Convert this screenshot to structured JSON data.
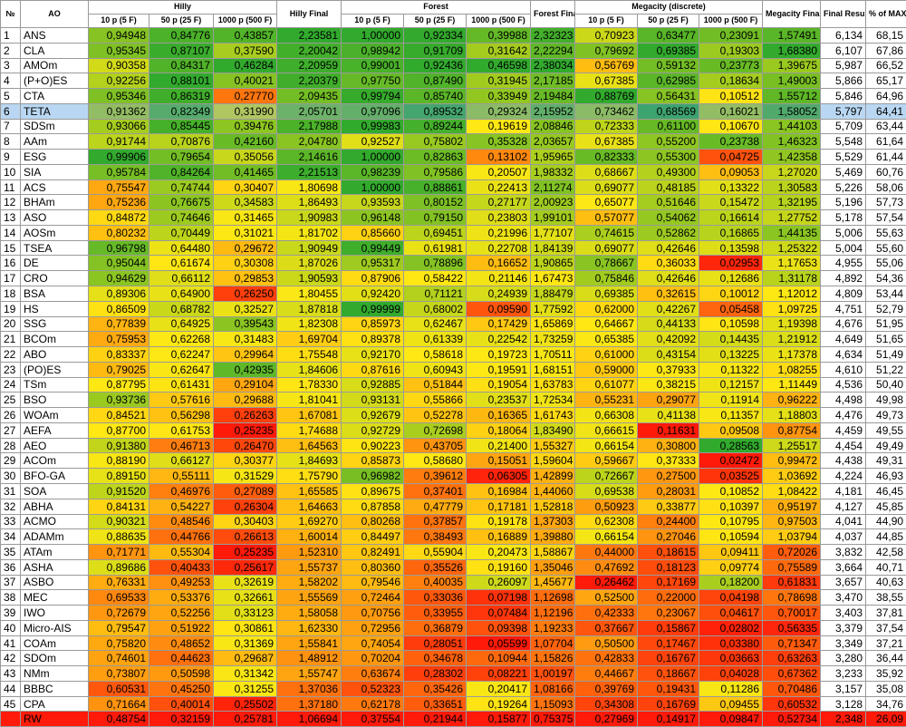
{
  "table": {
    "header": {
      "top": [
        "№",
        "AO",
        "Hilly",
        "Hilly Final",
        "Forest",
        "Forest Final",
        "Megacity (discrete)",
        "Megacity Final",
        "Final Result",
        "% of MAX"
      ],
      "sub": [
        "10 p (5 F)",
        "50 p (25 F)",
        "1000 p (500 F)",
        "10 p (5 F)",
        "50 p (25 F)",
        "1000 p (500 F)",
        "10 p (5 F)",
        "50 p (25 F)",
        "1000 p (500 F)"
      ]
    },
    "rows": [
      [
        1,
        "ANS",
        "0,94948",
        "0,84776",
        "0,43857",
        "2,23581",
        "1,00000",
        "0,92334",
        "0,39988",
        "2,32323",
        "0,70923",
        "0,63477",
        "0,23091",
        "1,57491",
        "6,134",
        "68,15"
      ],
      [
        2,
        "CLA",
        "0,95345",
        "0,87107",
        "0,37590",
        "2,20042",
        "0,98942",
        "0,91709",
        "0,31642",
        "2,22294",
        "0,79692",
        "0,69385",
        "0,19303",
        "1,68380",
        "6,107",
        "67,86"
      ],
      [
        3,
        "AMOm",
        "0,90358",
        "0,84317",
        "0,46284",
        "2,20959",
        "0,99001",
        "0,92436",
        "0,46598",
        "2,38034",
        "0,56769",
        "0,59132",
        "0,23773",
        "1,39675",
        "5,987",
        "66,52"
      ],
      [
        4,
        "(P+O)ES",
        "0,92256",
        "0,88101",
        "0,40021",
        "2,20379",
        "0,97750",
        "0,87490",
        "0,31945",
        "2,17185",
        "0,67385",
        "0,62985",
        "0,18634",
        "1,49003",
        "5,866",
        "65,17"
      ],
      [
        5,
        "CTA",
        "0,95346",
        "0,86319",
        "0,27770",
        "2,09435",
        "0,99794",
        "0,85740",
        "0,33949",
        "2,19484",
        "0,88769",
        "0,56431",
        "0,10512",
        "1,55712",
        "5,846",
        "64,96"
      ],
      [
        6,
        "TETA",
        "0,91362",
        "0,82349",
        "0,31990",
        "2,05701",
        "0,97096",
        "0,89532",
        "0,29324",
        "2,15952",
        "0,73462",
        "0,68569",
        "0,16021",
        "1,58052",
        "5,797",
        "64,41"
      ],
      [
        7,
        "SDSm",
        "0,93066",
        "0,85445",
        "0,39476",
        "2,17988",
        "0,99983",
        "0,89244",
        "0,19619",
        "2,08846",
        "0,72333",
        "0,61100",
        "0,10670",
        "1,44103",
        "5,709",
        "63,44"
      ],
      [
        8,
        "AAm",
        "0,91744",
        "0,70876",
        "0,42160",
        "2,04780",
        "0,92527",
        "0,75802",
        "0,35328",
        "2,03657",
        "0,67385",
        "0,55200",
        "0,23738",
        "1,46323",
        "5,548",
        "61,64"
      ],
      [
        9,
        "ESG",
        "0,99906",
        "0,79654",
        "0,35056",
        "2,14616",
        "1,00000",
        "0,82863",
        "0,13102",
        "1,95965",
        "0,82333",
        "0,55300",
        "0,04725",
        "1,42358",
        "5,529",
        "61,44"
      ],
      [
        10,
        "SIA",
        "0,95784",
        "0,84264",
        "0,41465",
        "2,21513",
        "0,98239",
        "0,79586",
        "0,20507",
        "1,98332",
        "0,68667",
        "0,49300",
        "0,09053",
        "1,27020",
        "5,469",
        "60,76"
      ],
      [
        11,
        "ACS",
        "0,75547",
        "0,74744",
        "0,30407",
        "1,80698",
        "1,00000",
        "0,88861",
        "0,22413",
        "2,11274",
        "0,69077",
        "0,48185",
        "0,13322",
        "1,30583",
        "5,226",
        "58,06"
      ],
      [
        12,
        "BHAm",
        "0,75236",
        "0,76675",
        "0,34583",
        "1,86493",
        "0,93593",
        "0,80152",
        "0,27177",
        "2,00923",
        "0,65077",
        "0,51646",
        "0,15472",
        "1,32195",
        "5,196",
        "57,73"
      ],
      [
        13,
        "ASO",
        "0,84872",
        "0,74646",
        "0,31465",
        "1,90983",
        "0,96148",
        "0,79150",
        "0,23803",
        "1,99101",
        "0,57077",
        "0,54062",
        "0,16614",
        "1,27752",
        "5,178",
        "57,54"
      ],
      [
        14,
        "AOSm",
        "0,80232",
        "0,70449",
        "0,31021",
        "1,81702",
        "0,85660",
        "0,69451",
        "0,21996",
        "1,77107",
        "0,74615",
        "0,52862",
        "0,16865",
        "1,44135",
        "5,006",
        "55,63"
      ],
      [
        15,
        "TSEA",
        "0,96798",
        "0,64480",
        "0,29672",
        "1,90949",
        "0,99449",
        "0,61981",
        "0,22708",
        "1,84139",
        "0,69077",
        "0,42646",
        "0,13598",
        "1,25322",
        "5,004",
        "55,60"
      ],
      [
        16,
        "DE",
        "0,95044",
        "0,61674",
        "0,30308",
        "1,87026",
        "0,95317",
        "0,78896",
        "0,16652",
        "1,90865",
        "0,78667",
        "0,36033",
        "0,02953",
        "1,17653",
        "4,955",
        "55,06"
      ],
      [
        17,
        "CRO",
        "0,94629",
        "0,66112",
        "0,29853",
        "1,90593",
        "0,87906",
        "0,58422",
        "0,21146",
        "1,67473",
        "0,75846",
        "0,42646",
        "0,12686",
        "1,31178",
        "4,892",
        "54,36"
      ],
      [
        18,
        "BSA",
        "0,89306",
        "0,64900",
        "0,26250",
        "1,80455",
        "0,92420",
        "0,71121",
        "0,24939",
        "1,88479",
        "0,69385",
        "0,32615",
        "0,10012",
        "1,12012",
        "4,809",
        "53,44"
      ],
      [
        19,
        "HS",
        "0,86509",
        "0,68782",
        "0,32527",
        "1,87818",
        "0,99999",
        "0,68002",
        "0,09590",
        "1,77592",
        "0,62000",
        "0,42267",
        "0,05458",
        "1,09725",
        "4,751",
        "52,79"
      ],
      [
        20,
        "SSG",
        "0,77839",
        "0,64925",
        "0,39543",
        "1,82308",
        "0,85973",
        "0,62467",
        "0,17429",
        "1,65869",
        "0,64667",
        "0,44133",
        "0,10598",
        "1,19398",
        "4,676",
        "51,95"
      ],
      [
        21,
        "BCOm",
        "0,75953",
        "0,62268",
        "0,31483",
        "1,69704",
        "0,89378",
        "0,61339",
        "0,22542",
        "1,73259",
        "0,65385",
        "0,42092",
        "0,14435",
        "1,21912",
        "4,649",
        "51,65"
      ],
      [
        22,
        "ABO",
        "0,83337",
        "0,62247",
        "0,29964",
        "1,75548",
        "0,92170",
        "0,58618",
        "0,19723",
        "1,70511",
        "0,61000",
        "0,43154",
        "0,13225",
        "1,17378",
        "4,634",
        "51,49"
      ],
      [
        23,
        "(PO)ES",
        "0,79025",
        "0,62647",
        "0,42935",
        "1,84606",
        "0,87616",
        "0,60943",
        "0,19591",
        "1,68151",
        "0,59000",
        "0,37933",
        "0,11322",
        "1,08255",
        "4,610",
        "51,22"
      ],
      [
        24,
        "TSm",
        "0,87795",
        "0,61431",
        "0,29104",
        "1,78330",
        "0,92885",
        "0,51844",
        "0,19054",
        "1,63783",
        "0,61077",
        "0,38215",
        "0,12157",
        "1,11449",
        "4,536",
        "50,40"
      ],
      [
        25,
        "BSO",
        "0,93736",
        "0,57616",
        "0,29688",
        "1,81041",
        "0,93131",
        "0,55866",
        "0,23537",
        "1,72534",
        "0,55231",
        "0,29077",
        "0,11914",
        "0,96222",
        "4,498",
        "49,98"
      ],
      [
        26,
        "WOAm",
        "0,84521",
        "0,56298",
        "0,26263",
        "1,67081",
        "0,92679",
        "0,52278",
        "0,16365",
        "1,61743",
        "0,66308",
        "0,41138",
        "0,11357",
        "1,18803",
        "4,476",
        "49,73"
      ],
      [
        27,
        "AEFA",
        "0,87700",
        "0,61753",
        "0,25235",
        "1,74688",
        "0,92729",
        "0,72698",
        "0,18064",
        "1,83490",
        "0,66615",
        "0,11631",
        "0,09508",
        "0,87754",
        "4,459",
        "49,55"
      ],
      [
        28,
        "AEO",
        "0,91380",
        "0,46713",
        "0,26470",
        "1,64563",
        "0,90223",
        "0,43705",
        "0,21400",
        "1,55327",
        "0,66154",
        "0,30800",
        "0,28563",
        "1,25517",
        "4,454",
        "49,49"
      ],
      [
        29,
        "ACOm",
        "0,88190",
        "0,66127",
        "0,30377",
        "1,84693",
        "0,85873",
        "0,58680",
        "0,15051",
        "1,59604",
        "0,59667",
        "0,37333",
        "0,02472",
        "0,99472",
        "4,438",
        "49,31"
      ],
      [
        30,
        "BFO-GA",
        "0,89150",
        "0,55111",
        "0,31529",
        "1,75790",
        "0,96982",
        "0,39612",
        "0,06305",
        "1,42899",
        "0,72667",
        "0,27500",
        "0,03525",
        "1,03692",
        "4,224",
        "46,93"
      ],
      [
        31,
        "SOA",
        "0,91520",
        "0,46976",
        "0,27089",
        "1,65585",
        "0,89675",
        "0,37401",
        "0,16984",
        "1,44060",
        "0,69538",
        "0,28031",
        "0,10852",
        "1,08422",
        "4,181",
        "46,45"
      ],
      [
        32,
        "ABHA",
        "0,84131",
        "0,54227",
        "0,26304",
        "1,64663",
        "0,87858",
        "0,47779",
        "0,17181",
        "1,52818",
        "0,50923",
        "0,33877",
        "0,10397",
        "0,95197",
        "4,127",
        "45,85"
      ],
      [
        33,
        "ACMO",
        "0,90321",
        "0,48546",
        "0,30403",
        "1,69270",
        "0,80268",
        "0,37857",
        "0,19178",
        "1,37303",
        "0,62308",
        "0,24400",
        "0,10795",
        "0,97503",
        "4,041",
        "44,90"
      ],
      [
        34,
        "ADAMm",
        "0,88635",
        "0,44766",
        "0,26613",
        "1,60014",
        "0,84497",
        "0,38493",
        "0,16889",
        "1,39880",
        "0,66154",
        "0,27046",
        "0,10594",
        "1,03794",
        "4,037",
        "44,85"
      ],
      [
        35,
        "ATAm",
        "0,71771",
        "0,55304",
        "0,25235",
        "1,52310",
        "0,82491",
        "0,55904",
        "0,20473",
        "1,58867",
        "0,44000",
        "0,18615",
        "0,09411",
        "0,72026",
        "3,832",
        "42,58"
      ],
      [
        36,
        "ASHA",
        "0,89686",
        "0,40433",
        "0,25617",
        "1,55737",
        "0,80360",
        "0,35526",
        "0,19160",
        "1,35046",
        "0,47692",
        "0,18123",
        "0,09774",
        "0,75589",
        "3,664",
        "40,71"
      ],
      [
        37,
        "ASBO",
        "0,76331",
        "0,49253",
        "0,32619",
        "1,58202",
        "0,79546",
        "0,40035",
        "0,26097",
        "1,45677",
        "0,26462",
        "0,17169",
        "0,18200",
        "0,61831",
        "3,657",
        "40,63"
      ],
      [
        38,
        "MEC",
        "0,69533",
        "0,53376",
        "0,32661",
        "1,55569",
        "0,72464",
        "0,33036",
        "0,07198",
        "1,12698",
        "0,52500",
        "0,22000",
        "0,04198",
        "0,78698",
        "3,470",
        "38,55"
      ],
      [
        39,
        "IWO",
        "0,72679",
        "0,52256",
        "0,33123",
        "1,58058",
        "0,70756",
        "0,33955",
        "0,07484",
        "1,12196",
        "0,42333",
        "0,23067",
        "0,04617",
        "0,70017",
        "3,403",
        "37,81"
      ],
      [
        40,
        "Micro-AIS",
        "0,79547",
        "0,51922",
        "0,30861",
        "1,62330",
        "0,72956",
        "0,36879",
        "0,09398",
        "1,19233",
        "0,37667",
        "0,15867",
        "0,02802",
        "0,56335",
        "3,379",
        "37,54"
      ],
      [
        41,
        "COAm",
        "0,75820",
        "0,48652",
        "0,31369",
        "1,55841",
        "0,74054",
        "0,28051",
        "0,05599",
        "1,07704",
        "0,50500",
        "0,17467",
        "0,03380",
        "0,71347",
        "3,349",
        "37,21"
      ],
      [
        42,
        "SDOm",
        "0,74601",
        "0,44623",
        "0,29687",
        "1,48912",
        "0,70204",
        "0,34678",
        "0,10944",
        "1,15826",
        "0,42833",
        "0,16767",
        "0,03663",
        "0,63263",
        "3,280",
        "36,44"
      ],
      [
        43,
        "NMm",
        "0,73807",
        "0,50598",
        "0,31342",
        "1,55747",
        "0,63674",
        "0,28302",
        "0,08221",
        "1,00197",
        "0,44667",
        "0,18667",
        "0,04028",
        "0,67362",
        "3,233",
        "35,92"
      ],
      [
        44,
        "BBBC",
        "0,60531",
        "0,45250",
        "0,31255",
        "1,37036",
        "0,52323",
        "0,35426",
        "0,20417",
        "1,08166",
        "0,39769",
        "0,19431",
        "0,11286",
        "0,70486",
        "3,157",
        "35,08"
      ],
      [
        45,
        "CPA",
        "0,71664",
        "0,40014",
        "0,25502",
        "1,37180",
        "0,62178",
        "0,33651",
        "0,19264",
        "1,15093",
        "0,34308",
        "0,16769",
        "0,09455",
        "0,60532",
        "3,128",
        "34,76"
      ],
      [
        null,
        "RW",
        "0,48754",
        "0,32159",
        "0,25781",
        "1,06694",
        "0,37554",
        "0,21944",
        "0,15877",
        "0,75375",
        "0,27969",
        "0,14917",
        "0,09847",
        "0,52734",
        "2,348",
        "26,09"
      ]
    ]
  }
}
